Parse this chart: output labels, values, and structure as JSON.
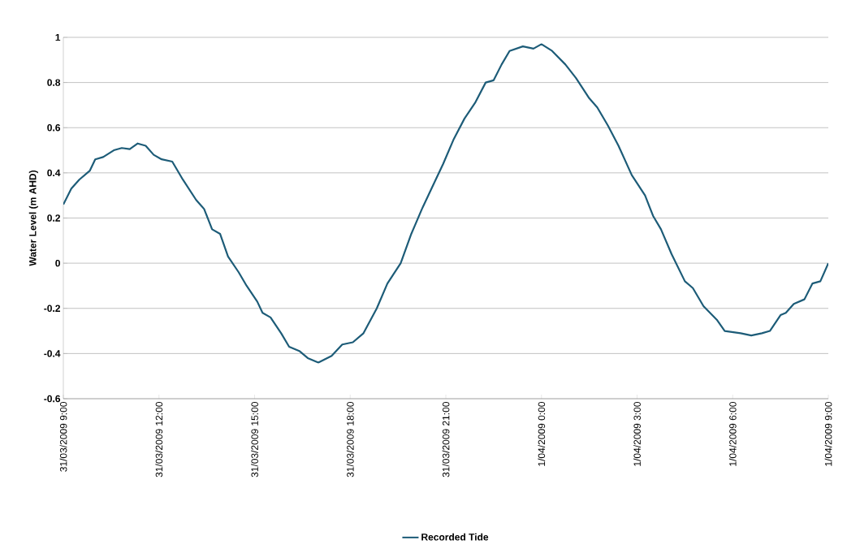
{
  "chart_data": {
    "type": "line",
    "ylabel": "Water Level (m AHD)",
    "x": [
      "2009-03-31T09:00",
      "2009-03-31T09:15",
      "2009-03-31T09:30",
      "2009-03-31T09:50",
      "2009-03-31T10:00",
      "2009-03-31T10:15",
      "2009-03-31T10:35",
      "2009-03-31T10:50",
      "2009-03-31T11:05",
      "2009-03-31T11:20",
      "2009-03-31T11:35",
      "2009-03-31T11:50",
      "2009-03-31T12:05",
      "2009-03-31T12:25",
      "2009-03-31T12:45",
      "2009-03-31T13:10",
      "2009-03-31T13:25",
      "2009-03-31T13:40",
      "2009-03-31T13:55",
      "2009-03-31T14:10",
      "2009-03-31T14:30",
      "2009-03-31T14:45",
      "2009-03-31T15:05",
      "2009-03-31T15:15",
      "2009-03-31T15:30",
      "2009-03-31T15:50",
      "2009-03-31T16:05",
      "2009-03-31T16:25",
      "2009-03-31T16:40",
      "2009-03-31T17:00",
      "2009-03-31T17:25",
      "2009-03-31T17:45",
      "2009-03-31T18:05",
      "2009-03-31T18:25",
      "2009-03-31T18:50",
      "2009-03-31T19:10",
      "2009-03-31T19:35",
      "2009-03-31T19:55",
      "2009-03-31T20:15",
      "2009-03-31T20:35",
      "2009-03-31T20:55",
      "2009-03-31T21:15",
      "2009-03-31T21:35",
      "2009-03-31T21:55",
      "2009-03-31T22:15",
      "2009-03-31T22:30",
      "2009-03-31T22:45",
      "2009-03-31T23:00",
      "2009-03-31T23:25",
      "2009-03-31T23:45",
      "2009-04-01T00:00",
      "2009-04-01T00:20",
      "2009-04-01T00:45",
      "2009-04-01T01:05",
      "2009-04-01T01:30",
      "2009-04-01T01:45",
      "2009-04-01T02:05",
      "2009-04-01T02:25",
      "2009-04-01T02:50",
      "2009-04-01T03:15",
      "2009-04-01T03:30",
      "2009-04-01T03:45",
      "2009-04-01T04:05",
      "2009-04-01T04:30",
      "2009-04-01T04:45",
      "2009-04-01T05:05",
      "2009-04-01T05:30",
      "2009-04-01T05:45",
      "2009-04-01T06:15",
      "2009-04-01T06:35",
      "2009-04-01T06:55",
      "2009-04-01T07:10",
      "2009-04-01T07:30",
      "2009-04-01T07:40",
      "2009-04-01T07:55",
      "2009-04-01T08:15",
      "2009-04-01T08:30",
      "2009-04-01T08:45",
      "2009-04-01T09:00"
    ],
    "series": [
      {
        "name": "Recorded Tide",
        "color": "#1d5c78",
        "values": [
          0.26,
          0.33,
          0.37,
          0.41,
          0.46,
          0.47,
          0.5,
          0.51,
          0.505,
          0.53,
          0.52,
          0.48,
          0.46,
          0.45,
          0.37,
          0.28,
          0.24,
          0.15,
          0.13,
          0.03,
          -0.04,
          -0.1,
          -0.17,
          -0.22,
          -0.24,
          -0.31,
          -0.37,
          -0.39,
          -0.42,
          -0.44,
          -0.41,
          -0.36,
          -0.35,
          -0.31,
          -0.2,
          -0.09,
          0.0,
          0.13,
          0.24,
          0.34,
          0.44,
          0.55,
          0.64,
          0.71,
          0.8,
          0.81,
          0.88,
          0.94,
          0.96,
          0.95,
          0.97,
          0.94,
          0.88,
          0.82,
          0.73,
          0.69,
          0.61,
          0.52,
          0.39,
          0.3,
          0.21,
          0.15,
          0.04,
          -0.08,
          -0.11,
          -0.19,
          -0.25,
          -0.3,
          -0.31,
          -0.32,
          -0.31,
          -0.3,
          -0.23,
          -0.22,
          -0.18,
          -0.16,
          -0.09,
          -0.08,
          0.0
        ]
      }
    ],
    "xlim": [
      "2009-03-31T09:00",
      "2009-04-01T09:00"
    ],
    "xticks": [
      {
        "value": "2009-03-31T09:00",
        "label": "31/03/2009 9:00"
      },
      {
        "value": "2009-03-31T12:00",
        "label": "31/03/2009 12:00"
      },
      {
        "value": "2009-03-31T15:00",
        "label": "31/03/2009 15:00"
      },
      {
        "value": "2009-03-31T18:00",
        "label": "31/03/2009 18:00"
      },
      {
        "value": "2009-03-31T21:00",
        "label": "31/03/2009 21:00"
      },
      {
        "value": "2009-04-01T00:00",
        "label": "1/04/2009 0:00"
      },
      {
        "value": "2009-04-01T03:00",
        "label": "1/04/2009 3:00"
      },
      {
        "value": "2009-04-01T06:00",
        "label": "1/04/2009 6:00"
      },
      {
        "value": "2009-04-01T09:00",
        "label": "1/04/2009 9:00"
      }
    ],
    "ylim": [
      -0.6,
      1
    ],
    "yticks": [
      -0.6,
      -0.4,
      -0.2,
      0,
      0.2,
      0.4,
      0.6,
      0.8,
      1
    ],
    "grid": "y",
    "legend": "bottom",
    "marker": "none",
    "line_style": "solid"
  }
}
